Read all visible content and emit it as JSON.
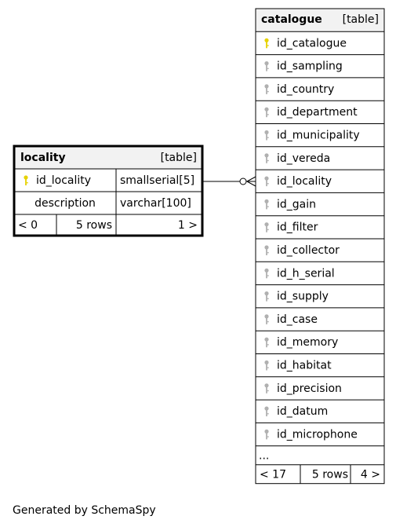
{
  "colors": {
    "primary_key": "#e6d200",
    "foreign_key": "#b0b0b0",
    "header_bg": "#f2f2f2",
    "line": "#000000"
  },
  "locality": {
    "title": "locality",
    "kind": "[table]",
    "columns": [
      {
        "name": "id_locality",
        "type": "smallserial[5]",
        "key": "primary-key-icon"
      },
      {
        "name": "description",
        "type": "varchar[100]",
        "key": ""
      }
    ],
    "footer": {
      "left": "< 0",
      "middle": "5 rows",
      "right": "1 >"
    }
  },
  "catalogue": {
    "title": "catalogue",
    "kind": "[table]",
    "columns": [
      {
        "name": "id_catalogue",
        "key": "primary-key-icon"
      },
      {
        "name": "id_sampling",
        "key": "foreign-key-icon"
      },
      {
        "name": "id_country",
        "key": "foreign-key-icon"
      },
      {
        "name": "id_department",
        "key": "foreign-key-icon"
      },
      {
        "name": "id_municipality",
        "key": "foreign-key-icon"
      },
      {
        "name": "id_vereda",
        "key": "foreign-key-icon"
      },
      {
        "name": "id_locality",
        "key": "foreign-key-icon"
      },
      {
        "name": "id_gain",
        "key": "foreign-key-icon"
      },
      {
        "name": "id_filter",
        "key": "foreign-key-icon"
      },
      {
        "name": "id_collector",
        "key": "foreign-key-icon"
      },
      {
        "name": "id_h_serial",
        "key": "foreign-key-icon"
      },
      {
        "name": "id_supply",
        "key": "foreign-key-icon"
      },
      {
        "name": "id_case",
        "key": "foreign-key-icon"
      },
      {
        "name": "id_memory",
        "key": "foreign-key-icon"
      },
      {
        "name": "id_habitat",
        "key": "foreign-key-icon"
      },
      {
        "name": "id_precision",
        "key": "foreign-key-icon"
      },
      {
        "name": "id_datum",
        "key": "foreign-key-icon"
      },
      {
        "name": "id_microphone",
        "key": "foreign-key-icon"
      }
    ],
    "ellipsis": "...",
    "footer": {
      "left": "< 17",
      "middle": "5 rows",
      "right": "4 >"
    }
  },
  "generated_by": "Generated by SchemaSpy"
}
